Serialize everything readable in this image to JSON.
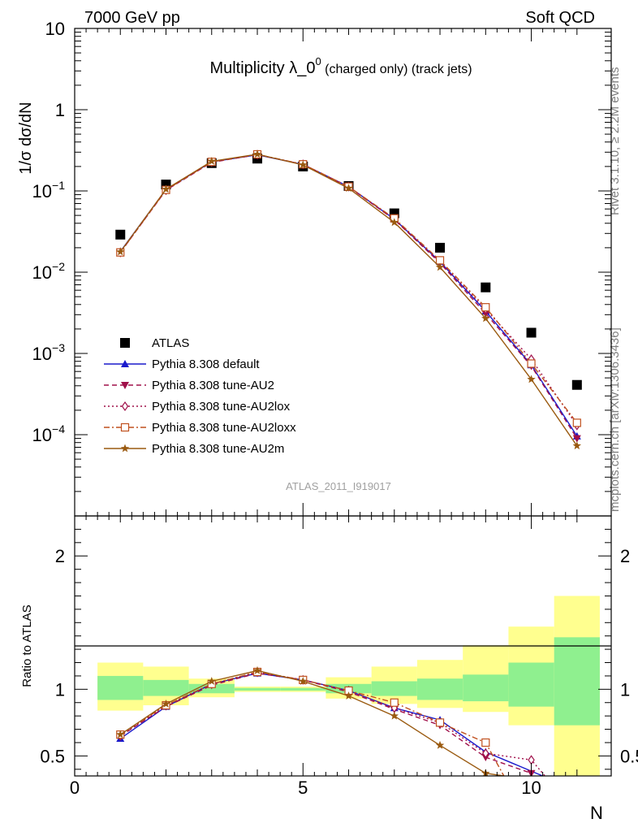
{
  "header": {
    "left": "7000 GeV pp",
    "right": "Soft QCD"
  },
  "side_labels": {
    "rivet": "Rivet 3.1.10, ≥ 2.2M events",
    "mcplots": "mcplots.cern.ch [arXiv:1306.3436]"
  },
  "watermark": "ATLAS_2011_I919017",
  "colors": {
    "atlas": "#000000",
    "default": "#1a1acc",
    "au2": "#a0104a",
    "au2lox": "#a0104a",
    "au2loxx": "#c0501e",
    "au2m": "#9a5a10",
    "band_inner": "#8ff08f",
    "band_outer": "#ffff8f"
  },
  "chart_data": [
    {
      "type": "scatter",
      "panel": "main",
      "title": "Multiplicity λ_0",
      "title_sup": "0",
      "title_suffix": " (charged only) (track jets)",
      "ylabel": "1/σ dσ/dN",
      "yscale": "log",
      "ylim": [
        1e-05,
        10
      ],
      "xlim": [
        0,
        11.75
      ],
      "y_tick_labels": [
        {
          "value": 10,
          "mantissa": "10",
          "exp": ""
        },
        {
          "value": 1,
          "mantissa": "1",
          "exp": ""
        },
        {
          "value": 0.1,
          "mantissa": "10",
          "exp": "−1"
        },
        {
          "value": 0.01,
          "mantissa": "10",
          "exp": "−2"
        },
        {
          "value": 0.001,
          "mantissa": "10",
          "exp": "−3"
        },
        {
          "value": 0.0001,
          "mantissa": "10",
          "exp": "−4"
        }
      ],
      "legend_position": "bottom-left",
      "series": [
        {
          "key": "atlas",
          "name": "ATLAS",
          "marker": "square",
          "line": "none",
          "x": [
            1,
            2,
            3,
            4,
            5,
            6,
            7,
            8,
            9,
            10,
            11
          ],
          "y": [
            0.029,
            0.12,
            0.22,
            0.25,
            0.2,
            0.115,
            0.053,
            0.02,
            0.0065,
            0.0018,
            0.00041
          ]
        },
        {
          "key": "default",
          "name": "Pythia 8.308 default",
          "marker": "triangle-up",
          "line": "solid",
          "x": [
            1,
            2,
            3,
            4,
            5,
            6,
            7,
            8,
            9,
            10,
            11
          ],
          "y": [
            0.018,
            0.104,
            0.228,
            0.278,
            0.212,
            0.113,
            0.045,
            0.0135,
            0.0033,
            0.00072,
            9.59e-05
          ]
        },
        {
          "key": "au2",
          "name": "Pythia 8.308 tune-AU2",
          "marker": "triangle-down",
          "line": "dashed",
          "x": [
            1,
            2,
            3,
            4,
            5,
            6,
            7,
            8,
            9,
            10,
            11
          ],
          "y": [
            0.0175,
            0.102,
            0.225,
            0.28,
            0.212,
            0.112,
            0.0445,
            0.013,
            0.0031,
            0.0007,
            9e-05
          ]
        },
        {
          "key": "au2lox",
          "name": "Pythia 8.308 tune-AU2lox",
          "marker": "diamond-open",
          "line": "dotted",
          "x": [
            1,
            2,
            3,
            4,
            5,
            6,
            7,
            8,
            9,
            10,
            11
          ],
          "y": [
            0.0175,
            0.102,
            0.227,
            0.28,
            0.213,
            0.113,
            0.0445,
            0.0135,
            0.0035,
            0.00085,
            0.00013
          ]
        },
        {
          "key": "au2loxx",
          "name": "Pythia 8.308 tune-AU2loxx",
          "marker": "square-open",
          "line": "dashdot",
          "x": [
            1,
            2,
            3,
            4,
            5,
            6,
            7,
            8,
            9,
            10,
            11
          ],
          "y": [
            0.0175,
            0.103,
            0.228,
            0.282,
            0.213,
            0.113,
            0.046,
            0.014,
            0.0037,
            0.00075,
            0.00014
          ]
        },
        {
          "key": "au2m",
          "name": "Pythia 8.308 tune-AU2m",
          "marker": "star",
          "line": "solid",
          "x": [
            1,
            2,
            3,
            4,
            5,
            6,
            7,
            8,
            9,
            10,
            11
          ],
          "y": [
            0.0178,
            0.105,
            0.232,
            0.283,
            0.209,
            0.108,
            0.041,
            0.0115,
            0.0027,
            0.00048,
            7.3e-05
          ]
        }
      ]
    },
    {
      "type": "line",
      "panel": "ratio",
      "ylabel": "Ratio to ATLAS",
      "xlabel": "N",
      "ylim": [
        0.35,
        2.3
      ],
      "xlim": [
        0,
        11.75
      ],
      "x_ticks": [
        0,
        5,
        10
      ],
      "y_ticks": [
        0.5,
        1,
        2
      ],
      "reference_line": 1,
      "bands": {
        "x_edges": [
          [
            0.5,
            1.5
          ],
          [
            1.5,
            2.5
          ],
          [
            2.5,
            3.5
          ],
          [
            3.5,
            4.5
          ],
          [
            4.5,
            5.5
          ],
          [
            5.5,
            6.5
          ],
          [
            6.5,
            7.5
          ],
          [
            7.5,
            8.5
          ],
          [
            8.5,
            9.5
          ],
          [
            9.5,
            10.5
          ],
          [
            10.5,
            11.5
          ]
        ],
        "inner": [
          [
            0.92,
            1.1
          ],
          [
            0.95,
            1.07
          ],
          [
            0.97,
            1.04
          ],
          [
            0.99,
            1.01
          ],
          [
            0.99,
            1.01
          ],
          [
            0.97,
            1.04
          ],
          [
            0.95,
            1.06
          ],
          [
            0.92,
            1.08
          ],
          [
            0.91,
            1.11
          ],
          [
            0.87,
            1.2
          ],
          [
            0.73,
            1.39
          ]
        ],
        "outer": [
          [
            0.84,
            1.2
          ],
          [
            0.88,
            1.17
          ],
          [
            0.94,
            1.08
          ],
          [
            0.98,
            1.02
          ],
          [
            0.98,
            1.02
          ],
          [
            0.93,
            1.09
          ],
          [
            0.89,
            1.17
          ],
          [
            0.86,
            1.22
          ],
          [
            0.83,
            1.33
          ],
          [
            0.73,
            1.47
          ],
          [
            0.35,
            1.7
          ]
        ]
      },
      "series": [
        {
          "key": "default",
          "x": [
            1,
            2,
            3,
            4,
            5,
            6,
            7,
            8,
            9,
            10.25
          ],
          "y": [
            0.63,
            0.87,
            1.04,
            1.12,
            1.07,
            0.99,
            0.86,
            0.77,
            0.53,
            0.35
          ]
        },
        {
          "key": "au2",
          "x": [
            1,
            2,
            3,
            4,
            5,
            6,
            7,
            8,
            9,
            10
          ],
          "y": [
            0.65,
            0.87,
            1.03,
            1.12,
            1.07,
            0.98,
            0.85,
            0.73,
            0.49,
            0.37
          ]
        },
        {
          "key": "au2lox",
          "x": [
            1,
            2,
            3,
            4,
            5,
            6,
            7,
            8,
            9,
            10,
            10.3
          ],
          "y": [
            0.65,
            0.88,
            1.04,
            1.13,
            1.07,
            0.99,
            0.86,
            0.75,
            0.52,
            0.47,
            0.35
          ]
        },
        {
          "key": "au2loxx",
          "x": [
            1,
            2,
            3,
            4,
            5,
            6,
            7,
            8,
            9,
            9.4
          ],
          "y": [
            0.66,
            0.88,
            1.04,
            1.13,
            1.07,
            0.99,
            0.9,
            0.75,
            0.6,
            0.35
          ]
        },
        {
          "key": "au2m",
          "x": [
            1,
            2,
            3,
            4,
            5,
            6,
            7,
            8,
            9,
            9.4
          ],
          "y": [
            0.66,
            0.89,
            1.06,
            1.14,
            1.06,
            0.95,
            0.8,
            0.58,
            0.37,
            0.35
          ]
        }
      ]
    }
  ]
}
